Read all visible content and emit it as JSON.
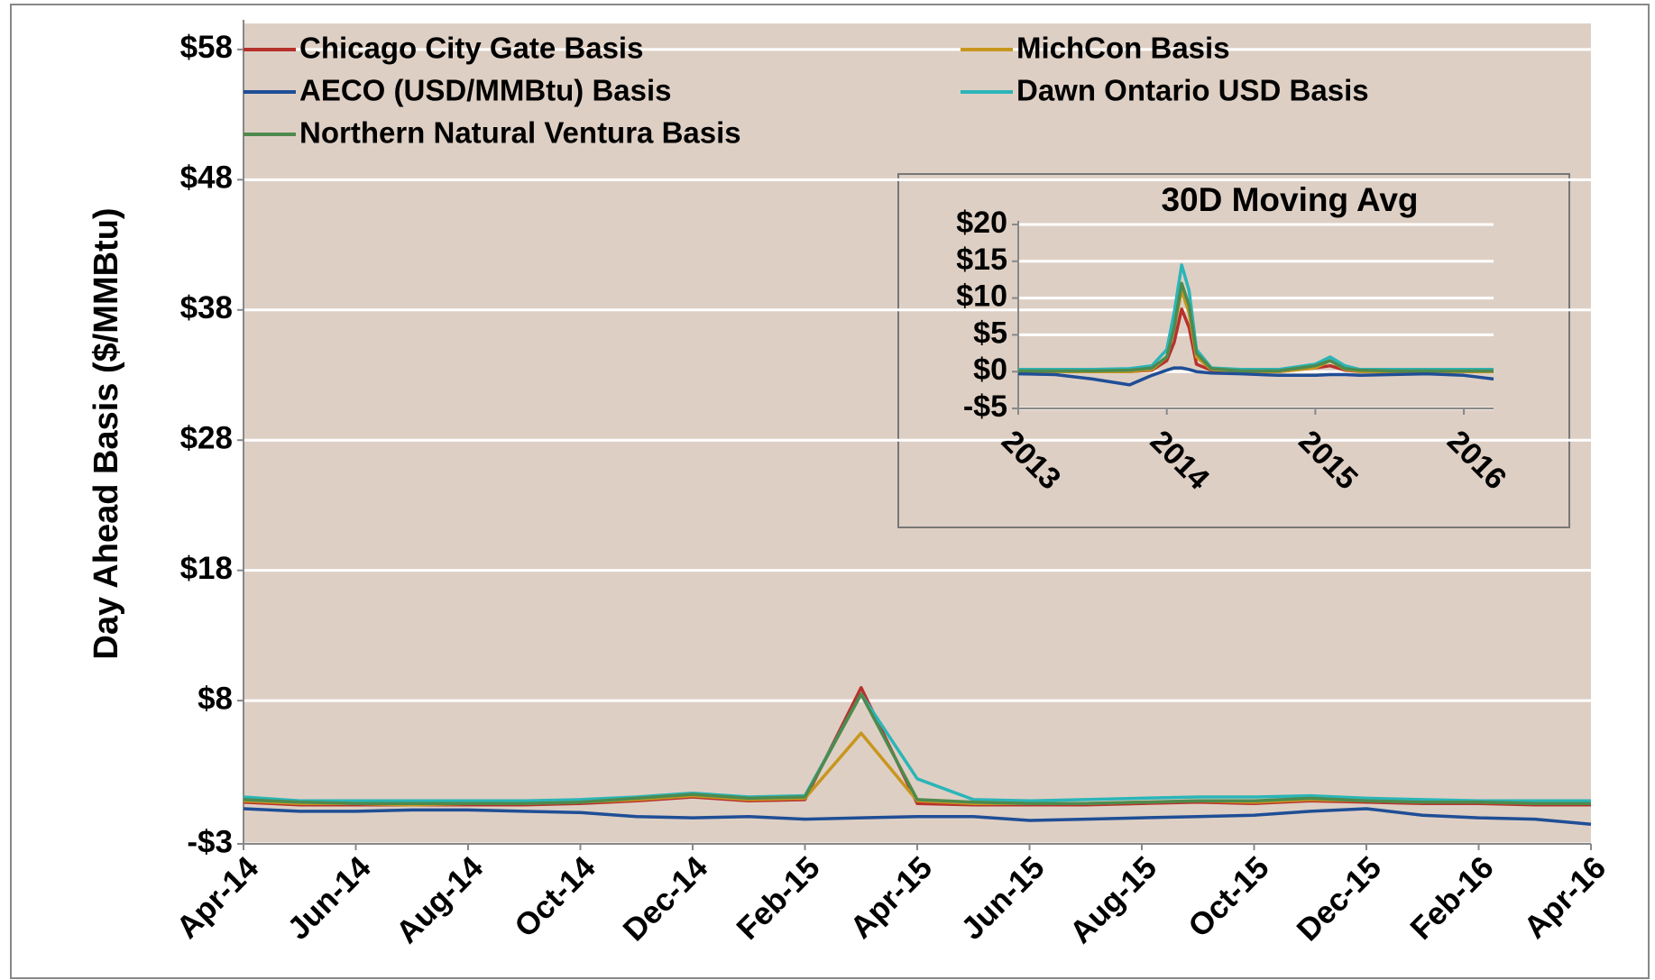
{
  "chart_data": [
    {
      "type": "line",
      "y_label": "Day Ahead Basis ($/MMBtu)",
      "x": [
        "2014-04",
        "2014-05",
        "2014-06",
        "2014-07",
        "2014-08",
        "2014-09",
        "2014-10",
        "2014-11",
        "2014-12",
        "2015-01",
        "2015-02",
        "2015-03",
        "2015-04",
        "2015-05",
        "2015-06",
        "2015-07",
        "2015-08",
        "2015-09",
        "2015-10",
        "2015-11",
        "2015-12",
        "2016-01",
        "2016-02",
        "2016-03",
        "2016-04"
      ],
      "xlim": [
        "2014-04",
        "2016-04"
      ],
      "xticks": [
        {
          "value": "2014-04",
          "label": "Apr-14"
        },
        {
          "value": "2014-06",
          "label": "Jun-14"
        },
        {
          "value": "2014-08",
          "label": "Aug-14"
        },
        {
          "value": "2014-10",
          "label": "Oct-14"
        },
        {
          "value": "2014-12",
          "label": "Dec-14"
        },
        {
          "value": "2015-02",
          "label": "Feb-15"
        },
        {
          "value": "2015-04",
          "label": "Apr-15"
        },
        {
          "value": "2015-06",
          "label": "Jun-15"
        },
        {
          "value": "2015-08",
          "label": "Aug-15"
        },
        {
          "value": "2015-10",
          "label": "Oct-15"
        },
        {
          "value": "2015-12",
          "label": "Dec-15"
        },
        {
          "value": "2016-02",
          "label": "Feb-16"
        },
        {
          "value": "2016-04",
          "label": "Apr-16"
        }
      ],
      "ylim": [
        -3,
        60
      ],
      "yticks": [
        {
          "value": -3,
          "label": "-$3"
        },
        {
          "value": 8,
          "label": "$8"
        },
        {
          "value": 18,
          "label": "$18"
        },
        {
          "value": 28,
          "label": "$28"
        },
        {
          "value": 38,
          "label": "$38"
        },
        {
          "value": 48,
          "label": "$48"
        },
        {
          "value": 58,
          "label": "$58"
        }
      ],
      "grid": true,
      "legend": "upper left",
      "series": [
        {
          "name": "Chicago City Gate Basis",
          "color": "#b7312c",
          "values": [
            0.2,
            0.0,
            0.0,
            0.0,
            0.0,
            0.0,
            0.1,
            0.3,
            0.6,
            0.3,
            0.4,
            9.0,
            0.1,
            0.0,
            0.0,
            0.0,
            0.1,
            0.2,
            0.1,
            0.3,
            0.2,
            0.1,
            0.1,
            0.0,
            0.0
          ]
        },
        {
          "name": "MichCon Basis",
          "color": "#c8961e",
          "values": [
            0.3,
            0.1,
            0.1,
            0.0,
            0.1,
            0.1,
            0.2,
            0.4,
            0.7,
            0.4,
            0.5,
            5.5,
            0.3,
            0.1,
            0.1,
            0.1,
            0.2,
            0.3,
            0.2,
            0.4,
            0.3,
            0.2,
            0.2,
            0.1,
            0.1
          ]
        },
        {
          "name": "AECO (USD/MMBtu) Basis",
          "color": "#1f4e96",
          "values": [
            -0.3,
            -0.5,
            -0.5,
            -0.4,
            -0.4,
            -0.5,
            -0.6,
            -0.9,
            -1.0,
            -0.9,
            -1.1,
            -1.0,
            -0.9,
            -0.9,
            -1.2,
            -1.1,
            -1.0,
            -0.9,
            -0.8,
            -0.5,
            -0.3,
            -0.8,
            -1.0,
            -1.1,
            -1.5
          ]
        },
        {
          "name": "Dawn Ontario USD Basis",
          "color": "#2bb5b8",
          "values": [
            0.6,
            0.3,
            0.3,
            0.3,
            0.3,
            0.3,
            0.4,
            0.6,
            0.9,
            0.6,
            0.7,
            8.5,
            2.0,
            0.4,
            0.3,
            0.4,
            0.5,
            0.6,
            0.6,
            0.7,
            0.5,
            0.4,
            0.3,
            0.3,
            0.3
          ]
        },
        {
          "name": "Northern Natural Ventura Basis",
          "color": "#4e8a4e",
          "values": [
            0.4,
            0.2,
            0.1,
            0.1,
            0.1,
            0.1,
            0.2,
            0.5,
            0.8,
            0.5,
            0.6,
            8.5,
            0.4,
            0.2,
            0.1,
            0.1,
            0.2,
            0.3,
            0.3,
            0.5,
            0.3,
            0.2,
            0.2,
            0.1,
            0.1
          ]
        }
      ]
    },
    {
      "type": "line",
      "title": "30D Moving Avg",
      "x": [
        2013,
        2013.25,
        2013.5,
        2013.75,
        2013.9,
        2014,
        2014.05,
        2014.1,
        2014.15,
        2014.2,
        2014.3,
        2014.5,
        2014.75,
        2015,
        2015.1,
        2015.2,
        2015.3,
        2015.5,
        2015.75,
        2016,
        2016.2
      ],
      "xlim": [
        2013,
        2016.2
      ],
      "xticks": [
        2013,
        2014,
        2015,
        2016
      ],
      "ylim": [
        -5,
        20
      ],
      "yticks": [
        {
          "value": -5,
          "label": "-$5"
        },
        {
          "value": 0,
          "label": "$0"
        },
        {
          "value": 5,
          "label": "$5"
        },
        {
          "value": 10,
          "label": "$10"
        },
        {
          "value": 15,
          "label": "$15"
        },
        {
          "value": 20,
          "label": "$20"
        }
      ],
      "grid": true,
      "series": [
        {
          "name": "Chicago City Gate Basis",
          "color": "#b7312c",
          "values": [
            0,
            0,
            0,
            0,
            0.2,
            1.5,
            4,
            8.5,
            6,
            1,
            0.2,
            0,
            0,
            0.5,
            0.8,
            0.2,
            0,
            0,
            0,
            0,
            0
          ]
        },
        {
          "name": "MichCon Basis",
          "color": "#c8961e",
          "values": [
            0,
            0,
            0,
            0,
            0.3,
            2,
            6,
            11,
            8,
            2,
            0.3,
            0,
            0,
            0.5,
            1.5,
            0.3,
            0,
            0,
            0,
            0,
            0
          ]
        },
        {
          "name": "AECO (USD/MMBtu) Basis",
          "color": "#1f4e96",
          "values": [
            -0.3,
            -0.4,
            -1,
            -1.8,
            -0.5,
            0.2,
            0.5,
            0.5,
            0.3,
            0,
            -0.2,
            -0.3,
            -0.5,
            -0.5,
            -0.4,
            -0.4,
            -0.5,
            -0.4,
            -0.3,
            -0.5,
            -1
          ]
        },
        {
          "name": "Dawn Ontario USD Basis",
          "color": "#2bb5b8",
          "values": [
            0.3,
            0.3,
            0.3,
            0.4,
            0.8,
            3,
            8,
            14.5,
            11,
            3,
            0.5,
            0.3,
            0.3,
            1,
            2,
            0.8,
            0.3,
            0.3,
            0.3,
            0.3,
            0.3
          ]
        },
        {
          "name": "Northern Natural Ventura Basis",
          "color": "#4e8a4e",
          "values": [
            0.1,
            0.1,
            0.1,
            0.2,
            0.5,
            2,
            6,
            12,
            9,
            2.5,
            0.4,
            0.1,
            0.1,
            0.8,
            1.5,
            0.4,
            0.2,
            0.1,
            0.1,
            0.1,
            0.1
          ]
        }
      ]
    }
  ]
}
